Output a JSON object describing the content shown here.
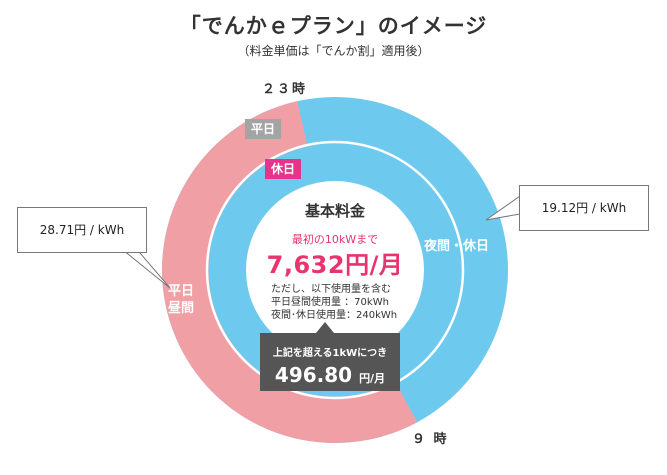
{
  "title": "「でんかｅプラン」のイメージ",
  "subtitle": "（料金単価は「でんか割」適用後）",
  "colors": {
    "weekday_day": "#f0a0a5",
    "night_holiday": "#6dcaee",
    "holiday_tag": "#e7348b",
    "weekday_tag": "#a4a4a4",
    "price_accent": "#e8336e",
    "dark_box": "#555555"
  },
  "clock": {
    "start_label": "２３時",
    "end_label": "９ 時"
  },
  "outer_ring": {
    "tag": "平日",
    "segments": [
      {
        "name": "weekday_daytime",
        "label": "平日\n昼間",
        "label_line1": "平日",
        "label_line2": "昼間",
        "start_hour": 9,
        "end_hour": 23
      },
      {
        "name": "night_holiday",
        "label": "夜間・休日",
        "start_hour": 23,
        "end_hour": 9
      }
    ]
  },
  "inner_ring": {
    "tag": "休日"
  },
  "callouts": {
    "weekday_price": "28.71円 / kWh",
    "night_price": "19.12円 / kWh"
  },
  "center": {
    "title": "基本料金",
    "first_label": "最初の10kWまで",
    "price": "7,632円/月",
    "notes": [
      "ただし、以下使用量を含む",
      "平日昼間使用量 ：70kWh",
      "夜間･休日使用量：240kWh"
    ]
  },
  "over_box": {
    "label": "上記を超える1kWにつき",
    "price": "496.80",
    "unit": "円/月"
  }
}
